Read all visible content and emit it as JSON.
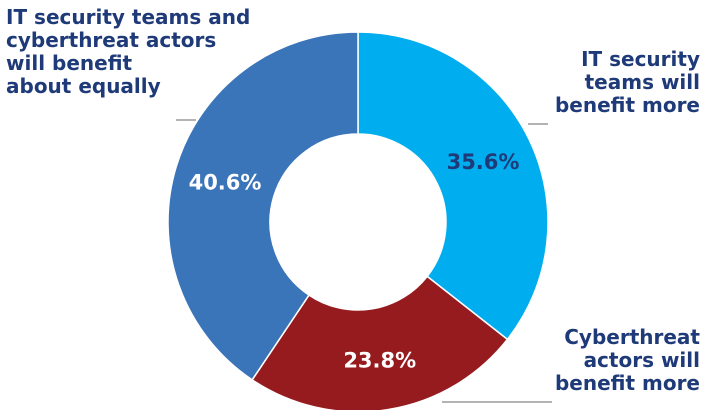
{
  "chart_data": {
    "type": "pie",
    "variant": "donut",
    "categories": [
      "IT security teams will benefit more",
      "Cyberthreat actors will benefit more",
      "IT security teams and cyberthreat actors will benefit about equally"
    ],
    "values": [
      35.6,
      23.8,
      40.6
    ],
    "value_labels": [
      "35.6%",
      "23.8%",
      "40.6%"
    ],
    "colors": [
      "#00aeef",
      "#951b1e",
      "#3a74b9"
    ],
    "value_label_colors": [
      "#1f3a78",
      "#ffffff",
      "#ffffff"
    ],
    "slice_labels": [
      "IT security\nteams will\nbenefit more",
      "Cyberthreat\nactors will\nbenefit more",
      "IT security teams and\ncyberthreat actors\nwill benefit\nabout equally"
    ],
    "start_angle": "12 o'clock",
    "direction": "clockwise",
    "leader_line_color": "#9a9a9a",
    "label_color": "#1f3a78"
  }
}
